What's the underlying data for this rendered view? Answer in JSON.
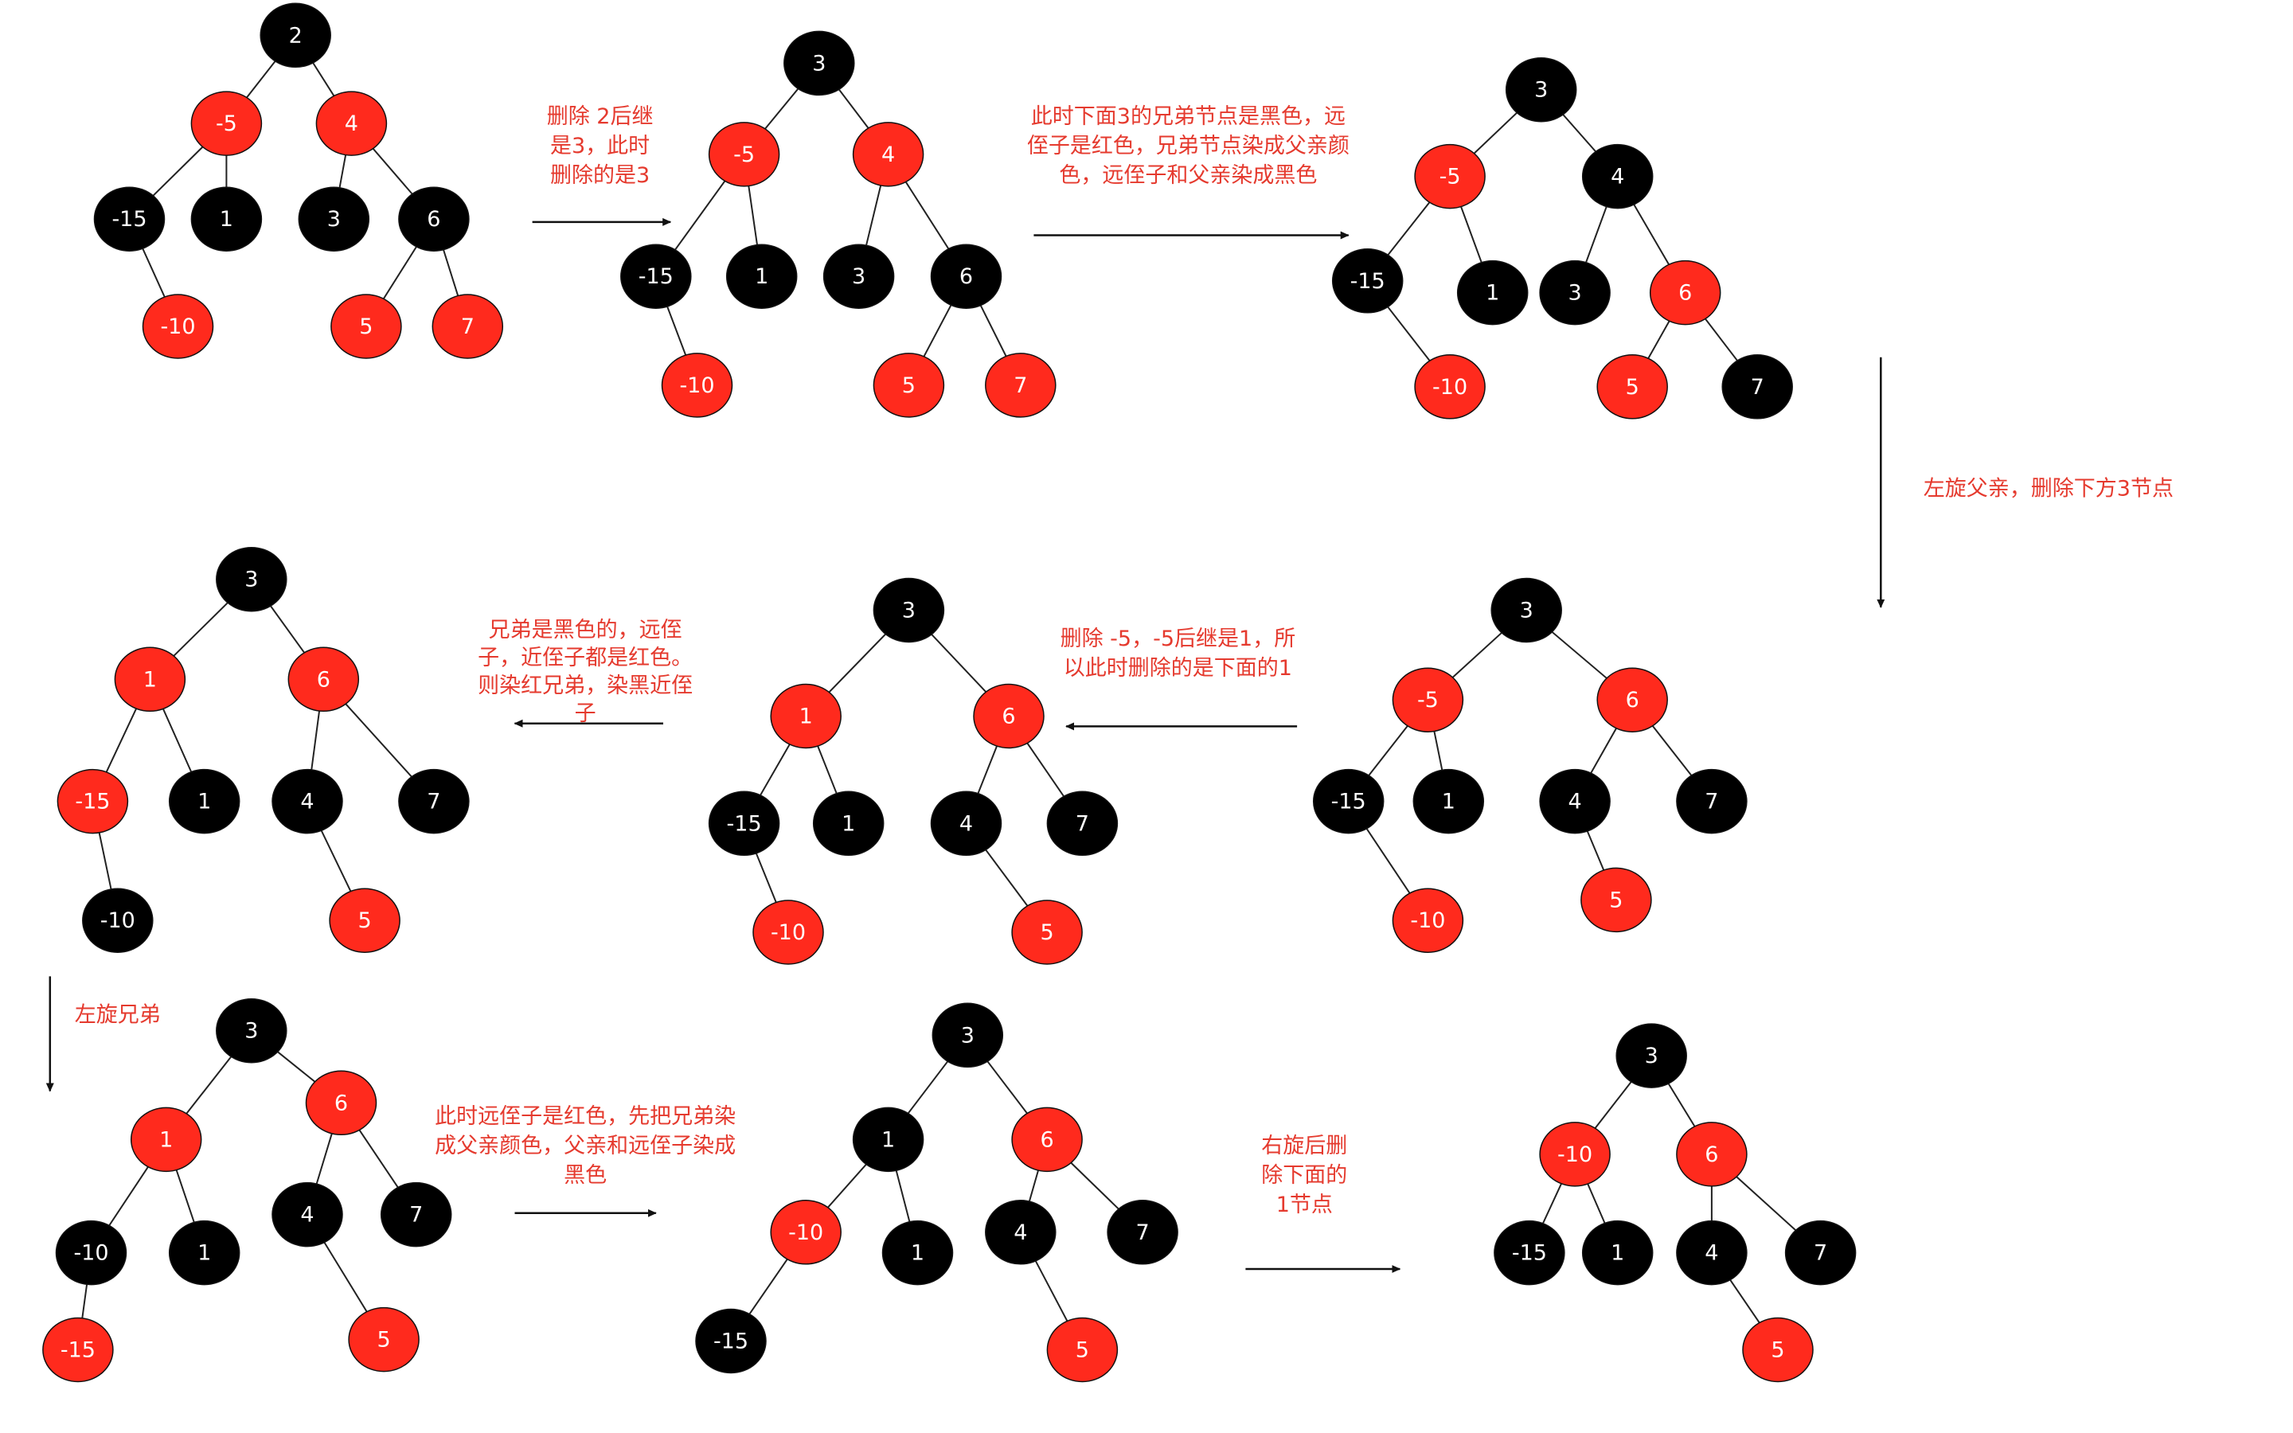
{
  "colors": {
    "red": "#ff2a1d",
    "black": "#000000",
    "edge": "#222222",
    "note": "#e53a2e",
    "node_text": "#ffffff"
  },
  "trees": [
    {
      "id": "t1-initial",
      "nodes": [
        {
          "id": "n2",
          "label": "2",
          "color": "black"
        },
        {
          "id": "n-5",
          "label": "-5",
          "color": "red",
          "parent": "n2"
        },
        {
          "id": "n4",
          "label": "4",
          "color": "red",
          "parent": "n2"
        },
        {
          "id": "n-15",
          "label": "-15",
          "color": "black",
          "parent": "n-5"
        },
        {
          "id": "n1",
          "label": "1",
          "color": "black",
          "parent": "n-5"
        },
        {
          "id": "n3",
          "label": "3",
          "color": "black",
          "parent": "n4"
        },
        {
          "id": "n6",
          "label": "6",
          "color": "black",
          "parent": "n4"
        },
        {
          "id": "n-10",
          "label": "-10",
          "color": "red",
          "parent": "n-15"
        },
        {
          "id": "n5",
          "label": "5",
          "color": "red",
          "parent": "n6"
        },
        {
          "id": "n7",
          "label": "7",
          "color": "red",
          "parent": "n6"
        }
      ]
    },
    {
      "id": "t2-replace-root",
      "nodes": [
        {
          "id": "n3",
          "label": "3",
          "color": "black"
        },
        {
          "id": "n-5",
          "label": "-5",
          "color": "red",
          "parent": "n3"
        },
        {
          "id": "n4",
          "label": "4",
          "color": "red",
          "parent": "n3"
        },
        {
          "id": "n-15",
          "label": "-15",
          "color": "black",
          "parent": "n-5"
        },
        {
          "id": "n1",
          "label": "1",
          "color": "black",
          "parent": "n-5"
        },
        {
          "id": "n3b",
          "label": "3",
          "color": "black",
          "parent": "n4"
        },
        {
          "id": "n6",
          "label": "6",
          "color": "black",
          "parent": "n4"
        },
        {
          "id": "n-10",
          "label": "-10",
          "color": "red",
          "parent": "n-15"
        },
        {
          "id": "n5",
          "label": "5",
          "color": "red",
          "parent": "n6"
        },
        {
          "id": "n7",
          "label": "7",
          "color": "red",
          "parent": "n6"
        }
      ]
    },
    {
      "id": "t3-recolor",
      "nodes": [
        {
          "id": "n3",
          "label": "3",
          "color": "black"
        },
        {
          "id": "n-5",
          "label": "-5",
          "color": "red",
          "parent": "n3"
        },
        {
          "id": "n4",
          "label": "4",
          "color": "black",
          "parent": "n3"
        },
        {
          "id": "n-15",
          "label": "-15",
          "color": "black",
          "parent": "n-5"
        },
        {
          "id": "n1",
          "label": "1",
          "color": "black",
          "parent": "n-5"
        },
        {
          "id": "n3b",
          "label": "3",
          "color": "black",
          "parent": "n4"
        },
        {
          "id": "n6",
          "label": "6",
          "color": "red",
          "parent": "n4"
        },
        {
          "id": "n-10",
          "label": "-10",
          "color": "red",
          "parent": "n-15"
        },
        {
          "id": "n5",
          "label": "5",
          "color": "red",
          "parent": "n6"
        },
        {
          "id": "n7",
          "label": "7",
          "color": "black",
          "parent": "n6"
        }
      ]
    },
    {
      "id": "t4-rotated",
      "nodes": [
        {
          "id": "n3",
          "label": "3",
          "color": "black"
        },
        {
          "id": "n-5",
          "label": "-5",
          "color": "red",
          "parent": "n3"
        },
        {
          "id": "n6",
          "label": "6",
          "color": "red",
          "parent": "n3"
        },
        {
          "id": "n-15",
          "label": "-15",
          "color": "black",
          "parent": "n-5"
        },
        {
          "id": "n1",
          "label": "1",
          "color": "black",
          "parent": "n-5"
        },
        {
          "id": "n4",
          "label": "4",
          "color": "black",
          "parent": "n6"
        },
        {
          "id": "n7",
          "label": "7",
          "color": "black",
          "parent": "n6"
        },
        {
          "id": "n-10",
          "label": "-10",
          "color": "red",
          "parent": "n-15"
        },
        {
          "id": "n5",
          "label": "5",
          "color": "red",
          "parent": "n4"
        }
      ]
    },
    {
      "id": "t5-replace-minus5",
      "nodes": [
        {
          "id": "n3",
          "label": "3",
          "color": "black"
        },
        {
          "id": "n1",
          "label": "1",
          "color": "red",
          "parent": "n3"
        },
        {
          "id": "n6",
          "label": "6",
          "color": "red",
          "parent": "n3"
        },
        {
          "id": "n-15",
          "label": "-15",
          "color": "black",
          "parent": "n1"
        },
        {
          "id": "n1b",
          "label": "1",
          "color": "black",
          "parent": "n1"
        },
        {
          "id": "n4",
          "label": "4",
          "color": "black",
          "parent": "n6"
        },
        {
          "id": "n7",
          "label": "7",
          "color": "black",
          "parent": "n6"
        },
        {
          "id": "n-10",
          "label": "-10",
          "color": "red",
          "parent": "n-15"
        },
        {
          "id": "n5",
          "label": "5",
          "color": "red",
          "parent": "n4"
        }
      ]
    },
    {
      "id": "t6-recolor-sibling",
      "nodes": [
        {
          "id": "n3",
          "label": "3",
          "color": "black"
        },
        {
          "id": "n1",
          "label": "1",
          "color": "red",
          "parent": "n3"
        },
        {
          "id": "n6",
          "label": "6",
          "color": "red",
          "parent": "n3"
        },
        {
          "id": "n-15",
          "label": "-15",
          "color": "red",
          "parent": "n1"
        },
        {
          "id": "n1b",
          "label": "1",
          "color": "black",
          "parent": "n1"
        },
        {
          "id": "n4",
          "label": "4",
          "color": "black",
          "parent": "n6"
        },
        {
          "id": "n7",
          "label": "7",
          "color": "black",
          "parent": "n6"
        },
        {
          "id": "n-10",
          "label": "-10",
          "color": "black",
          "parent": "n-15"
        },
        {
          "id": "n5",
          "label": "5",
          "color": "red",
          "parent": "n4"
        }
      ]
    },
    {
      "id": "t7-rotate-sibling",
      "nodes": [
        {
          "id": "n3",
          "label": "3",
          "color": "black"
        },
        {
          "id": "n1",
          "label": "1",
          "color": "red",
          "parent": "n3"
        },
        {
          "id": "n6",
          "label": "6",
          "color": "red",
          "parent": "n3"
        },
        {
          "id": "n-10",
          "label": "-10",
          "color": "black",
          "parent": "n1"
        },
        {
          "id": "n1b",
          "label": "1",
          "color": "black",
          "parent": "n1"
        },
        {
          "id": "n4",
          "label": "4",
          "color": "black",
          "parent": "n6"
        },
        {
          "id": "n7",
          "label": "7",
          "color": "black",
          "parent": "n6"
        },
        {
          "id": "n-15",
          "label": "-15",
          "color": "red",
          "parent": "n-10"
        },
        {
          "id": "n5",
          "label": "5",
          "color": "red",
          "parent": "n4"
        }
      ]
    },
    {
      "id": "t8-recolor",
      "nodes": [
        {
          "id": "n3",
          "label": "3",
          "color": "black"
        },
        {
          "id": "n1",
          "label": "1",
          "color": "black",
          "parent": "n3"
        },
        {
          "id": "n6",
          "label": "6",
          "color": "red",
          "parent": "n3"
        },
        {
          "id": "n-10",
          "label": "-10",
          "color": "red",
          "parent": "n1"
        },
        {
          "id": "n1b",
          "label": "1",
          "color": "black",
          "parent": "n1"
        },
        {
          "id": "n4",
          "label": "4",
          "color": "black",
          "parent": "n6"
        },
        {
          "id": "n7",
          "label": "7",
          "color": "black",
          "parent": "n6"
        },
        {
          "id": "n-15",
          "label": "-15",
          "color": "black",
          "parent": "n-10"
        },
        {
          "id": "n5",
          "label": "5",
          "color": "red",
          "parent": "n4"
        }
      ]
    },
    {
      "id": "t9-final",
      "nodes": [
        {
          "id": "n3",
          "label": "3",
          "color": "black"
        },
        {
          "id": "n-10",
          "label": "-10",
          "color": "red",
          "parent": "n3"
        },
        {
          "id": "n6",
          "label": "6",
          "color": "red",
          "parent": "n3"
        },
        {
          "id": "n-15",
          "label": "-15",
          "color": "black",
          "parent": "n-10"
        },
        {
          "id": "n1",
          "label": "1",
          "color": "black",
          "parent": "n-10"
        },
        {
          "id": "n4",
          "label": "4",
          "color": "black",
          "parent": "n6"
        },
        {
          "id": "n7",
          "label": "7",
          "color": "black",
          "parent": "n6"
        },
        {
          "id": "n5",
          "label": "5",
          "color": "red",
          "parent": "n4"
        }
      ]
    }
  ],
  "annotations": [
    {
      "id": "a1",
      "lines": [
        "删除 2后继",
        "是3，此时",
        "删除的是3"
      ]
    },
    {
      "id": "a2",
      "lines": [
        "此时下面3的兄弟节点是黑色，远",
        "侄子是红色，兄弟节点染成父亲颜",
        "色，远侄子和父亲染成黑色"
      ]
    },
    {
      "id": "a3",
      "lines": [
        "左旋父亲，删除下方3节点"
      ]
    },
    {
      "id": "a4",
      "lines": [
        "删除 -5，-5后继是1，所",
        "以此时删除的是下面的1"
      ]
    },
    {
      "id": "a5",
      "lines": [
        "兄弟是黑色的，远侄",
        "子，近侄子都是红色。",
        "则染红兄弟，染黑近侄",
        "子"
      ]
    },
    {
      "id": "a6",
      "lines": [
        "左旋兄弟"
      ]
    },
    {
      "id": "a7",
      "lines": [
        "此时远侄子是红色，先把兄弟染",
        "成父亲颜色，父亲和远侄子染成",
        "黑色"
      ]
    },
    {
      "id": "a8",
      "lines": [
        "右旋后删",
        "除下面的",
        "1节点"
      ]
    }
  ]
}
